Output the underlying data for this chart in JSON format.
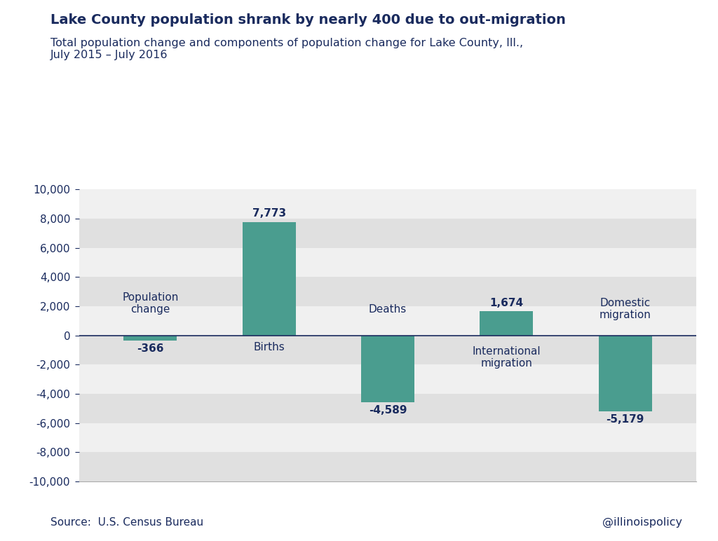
{
  "title": "Lake County population shrank by nearly 400 due to out-migration",
  "subtitle": "Total population change and components of population change for Lake County, Ill.,\nJuly 2015 – July 2016",
  "categories": [
    "Population\nchange",
    "Births",
    "Deaths",
    "International\nmigration",
    "Domestic\nmigration"
  ],
  "values": [
    -366,
    7773,
    -4589,
    1674,
    -5179
  ],
  "value_labels": [
    "-366",
    "7,773",
    "-4,589",
    "1,674",
    "-5,179"
  ],
  "bar_color": "#4a9d8f",
  "title_color": "#1a2b5e",
  "subtitle_color": "#1a2b5e",
  "label_color": "#1a2b5e",
  "tick_color": "#1a2b5e",
  "source_text": "Source:  U.S. Census Bureau",
  "watermark": "@illinoispolicy",
  "ylim": [
    -10000,
    10000
  ],
  "yticks": [
    -10000,
    -8000,
    -6000,
    -4000,
    -2000,
    0,
    2000,
    4000,
    6000,
    8000,
    10000
  ],
  "bg_color": "#ffffff",
  "plot_bg_color": "#e8e8e8",
  "band_light": "#f0f0f0",
  "band_dark": "#e0e0e0",
  "bar_width": 0.45,
  "zero_line_color": "#1a2b5e"
}
